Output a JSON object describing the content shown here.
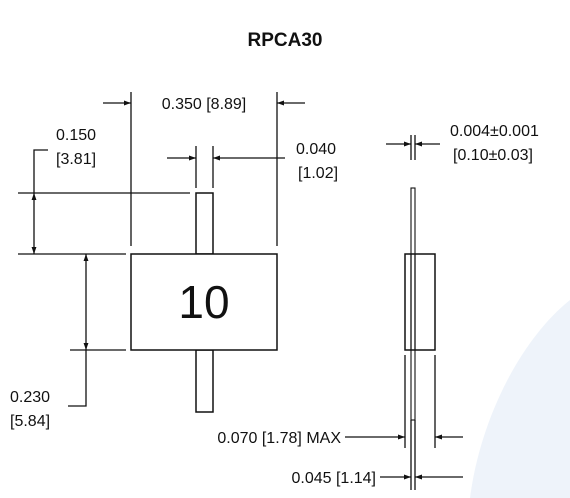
{
  "title": "RPCA30",
  "body_marking": "10",
  "dimensions": {
    "overall_length": "0.350 [8.89]",
    "lead_extension_in": "0.150",
    "lead_extension_mm": "[3.81]",
    "lead_width_in": "0.040",
    "lead_width_mm": "[1.02]",
    "lead_thickness_in": "0.004±0.001",
    "lead_thickness_mm": "[0.10±0.03]",
    "body_height_in": "0.230",
    "body_height_mm": "[5.84]",
    "body_thickness": "0.070 [1.78] MAX",
    "lead_spacing": "0.045 [1.14]"
  },
  "colors": {
    "line": "#111111",
    "background": "#ffffff",
    "watermark": "#eef3fa"
  }
}
